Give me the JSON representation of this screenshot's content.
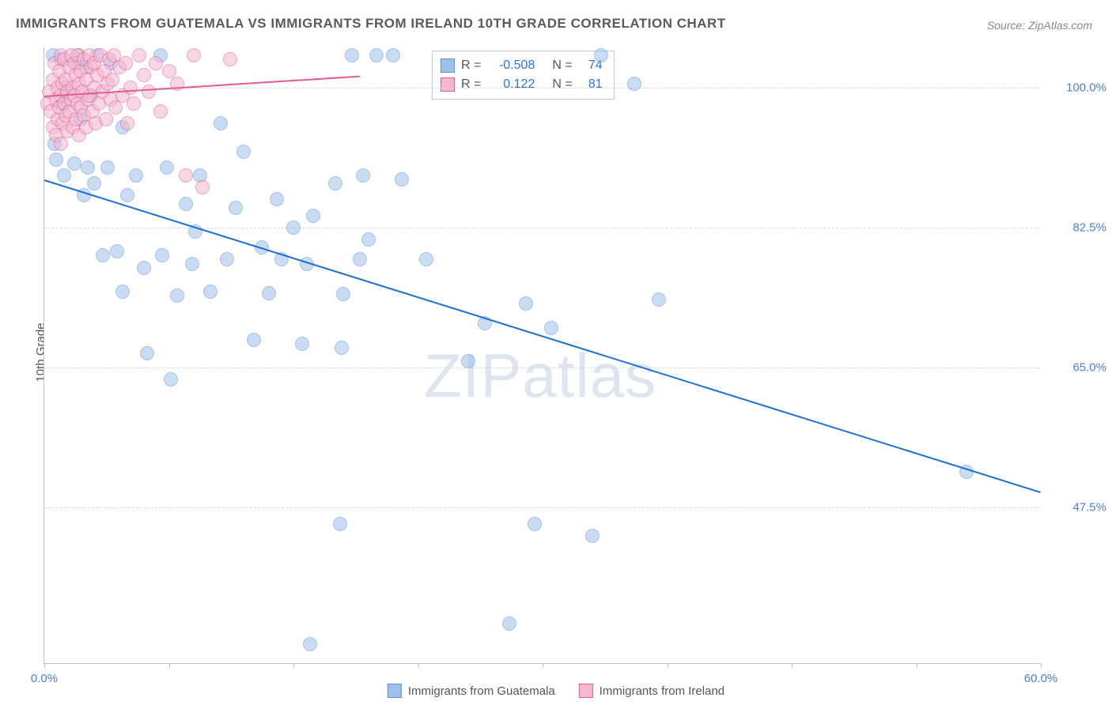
{
  "title": "IMMIGRANTS FROM GUATEMALA VS IMMIGRANTS FROM IRELAND 10TH GRADE CORRELATION CHART",
  "source_label": "Source:",
  "source_value": "ZipAtlas.com",
  "ylabel": "10th Grade",
  "watermark": "ZIPatlas",
  "chart": {
    "type": "scatter",
    "xlim": [
      0,
      60
    ],
    "ylim": [
      28,
      105
    ],
    "xtick_positions": [
      0,
      7.5,
      15,
      22.5,
      30,
      37.5,
      45,
      52.5,
      60
    ],
    "xtick_labels": {
      "0": "0.0%",
      "60": "60.0%"
    },
    "ytick_positions": [
      47.5,
      65.0,
      82.5,
      100.0
    ],
    "ytick_labels": [
      "47.5%",
      "65.0%",
      "82.5%",
      "100.0%"
    ],
    "background_color": "#ffffff",
    "grid_color": "#d8d8d8",
    "axis_color": "#bfbfbf",
    "marker_radius": 9,
    "marker_opacity": 0.55
  },
  "series": [
    {
      "name": "Immigrants from Guatemala",
      "color_fill": "#9dc1ec",
      "color_stroke": "#5a93d8",
      "line_color": "#1c6fd6",
      "R": "-0.508",
      "N": "74",
      "regression": {
        "x1": 0,
        "y1": 88.5,
        "x2": 60,
        "y2": 49.5
      },
      "points": [
        [
          0.5,
          104
        ],
        [
          0.6,
          93
        ],
        [
          0.7,
          91
        ],
        [
          1.0,
          103.5
        ],
        [
          1.1,
          98
        ],
        [
          1.2,
          89
        ],
        [
          1.3,
          100
        ],
        [
          1.8,
          90.5
        ],
        [
          2.0,
          103
        ],
        [
          2.1,
          104
        ],
        [
          2.2,
          96
        ],
        [
          2.4,
          86.5
        ],
        [
          2.5,
          102.5
        ],
        [
          2.6,
          90
        ],
        [
          2.8,
          99
        ],
        [
          3.0,
          88
        ],
        [
          3.2,
          104
        ],
        [
          3.5,
          79
        ],
        [
          3.8,
          90
        ],
        [
          4.0,
          103
        ],
        [
          4.4,
          79.5
        ],
        [
          4.7,
          95
        ],
        [
          4.7,
          74.5
        ],
        [
          5.0,
          86.5
        ],
        [
          5.5,
          89
        ],
        [
          6.0,
          77.5
        ],
        [
          6.2,
          66.8
        ],
        [
          7.0,
          104
        ],
        [
          7.1,
          79
        ],
        [
          7.4,
          90
        ],
        [
          7.6,
          63.5
        ],
        [
          8.0,
          74
        ],
        [
          8.5,
          85.5
        ],
        [
          8.9,
          78
        ],
        [
          9.1,
          82
        ],
        [
          9.4,
          89
        ],
        [
          10.0,
          74.5
        ],
        [
          10.6,
          95.5
        ],
        [
          11.0,
          78.5
        ],
        [
          11.5,
          85
        ],
        [
          12.0,
          92
        ],
        [
          12.6,
          68.5
        ],
        [
          13.1,
          80
        ],
        [
          13.5,
          74.3
        ],
        [
          14.0,
          86
        ],
        [
          14.3,
          78.5
        ],
        [
          15.0,
          82.5
        ],
        [
          15.5,
          68
        ],
        [
          15.8,
          78
        ],
        [
          16.0,
          30.5
        ],
        [
          16.2,
          84
        ],
        [
          17.5,
          88
        ],
        [
          17.8,
          45.5
        ],
        [
          17.9,
          67.5
        ],
        [
          18.0,
          74.2
        ],
        [
          18.5,
          104
        ],
        [
          19.0,
          78.5
        ],
        [
          19.2,
          89
        ],
        [
          19.5,
          81
        ],
        [
          21.0,
          104
        ],
        [
          21.5,
          88.5
        ],
        [
          23.0,
          78.5
        ],
        [
          25.5,
          65.8
        ],
        [
          26.5,
          70.5
        ],
        [
          28.0,
          33
        ],
        [
          29.0,
          73
        ],
        [
          29.5,
          45.5
        ],
        [
          30.5,
          70
        ],
        [
          33.0,
          44
        ],
        [
          33.5,
          104
        ],
        [
          35.5,
          100.5
        ],
        [
          37.0,
          73.5
        ],
        [
          55.5,
          52
        ],
        [
          20.0,
          104
        ]
      ]
    },
    {
      "name": "Immigrants from Ireland",
      "color_fill": "#f4b7ce",
      "color_stroke": "#e55a94",
      "line_color": "#e55a94",
      "R": "0.122",
      "N": "81",
      "regression": {
        "x1": 0,
        "y1": 99,
        "x2": 19,
        "y2": 101.5
      },
      "points": [
        [
          0.2,
          98
        ],
        [
          0.3,
          99.5
        ],
        [
          0.4,
          97
        ],
        [
          0.5,
          101
        ],
        [
          0.5,
          95
        ],
        [
          0.6,
          103
        ],
        [
          0.7,
          98.5
        ],
        [
          0.7,
          94
        ],
        [
          0.8,
          100
        ],
        [
          0.8,
          96
        ],
        [
          0.9,
          102
        ],
        [
          0.9,
          97.5
        ],
        [
          1.0,
          104
        ],
        [
          1.0,
          99
        ],
        [
          1.0,
          93
        ],
        [
          1.1,
          100.5
        ],
        [
          1.1,
          95.5
        ],
        [
          1.2,
          98
        ],
        [
          1.2,
          103.5
        ],
        [
          1.3,
          101
        ],
        [
          1.3,
          96.5
        ],
        [
          1.4,
          99.5
        ],
        [
          1.4,
          94.5
        ],
        [
          1.5,
          102.5
        ],
        [
          1.5,
          97
        ],
        [
          1.6,
          104
        ],
        [
          1.6,
          98.5
        ],
        [
          1.7,
          100
        ],
        [
          1.7,
          95
        ],
        [
          1.8,
          103
        ],
        [
          1.8,
          99
        ],
        [
          1.9,
          101.5
        ],
        [
          1.9,
          96
        ],
        [
          2.0,
          104
        ],
        [
          2.0,
          98
        ],
        [
          2.1,
          100.5
        ],
        [
          2.1,
          94
        ],
        [
          2.2,
          102
        ],
        [
          2.2,
          97.5
        ],
        [
          2.3,
          99.5
        ],
        [
          2.4,
          103.5
        ],
        [
          2.4,
          96.5
        ],
        [
          2.5,
          101
        ],
        [
          2.5,
          95
        ],
        [
          2.6,
          98.5
        ],
        [
          2.7,
          104
        ],
        [
          2.7,
          99
        ],
        [
          2.8,
          102.5
        ],
        [
          2.9,
          97
        ],
        [
          3.0,
          100
        ],
        [
          3.0,
          103
        ],
        [
          3.1,
          95.5
        ],
        [
          3.2,
          101.5
        ],
        [
          3.3,
          98
        ],
        [
          3.4,
          104
        ],
        [
          3.5,
          99.5
        ],
        [
          3.6,
          102
        ],
        [
          3.7,
          96
        ],
        [
          3.8,
          100.5
        ],
        [
          3.9,
          103.5
        ],
        [
          4.0,
          98.5
        ],
        [
          4.1,
          101
        ],
        [
          4.2,
          104
        ],
        [
          4.3,
          97.5
        ],
        [
          4.5,
          102.5
        ],
        [
          4.7,
          99
        ],
        [
          4.9,
          103
        ],
        [
          5.0,
          95.5
        ],
        [
          5.2,
          100
        ],
        [
          5.4,
          98
        ],
        [
          5.7,
          104
        ],
        [
          6.0,
          101.5
        ],
        [
          6.3,
          99.5
        ],
        [
          6.7,
          103
        ],
        [
          7.0,
          97
        ],
        [
          7.5,
          102
        ],
        [
          8.0,
          100.5
        ],
        [
          8.5,
          89
        ],
        [
          9.0,
          104
        ],
        [
          9.5,
          87.5
        ],
        [
          11.2,
          103.5
        ]
      ]
    }
  ],
  "legend_box": {
    "R_label": "R =",
    "N_label": "N ="
  },
  "bottom_legend": [
    "Immigrants from Guatemala",
    "Immigrants from Ireland"
  ]
}
